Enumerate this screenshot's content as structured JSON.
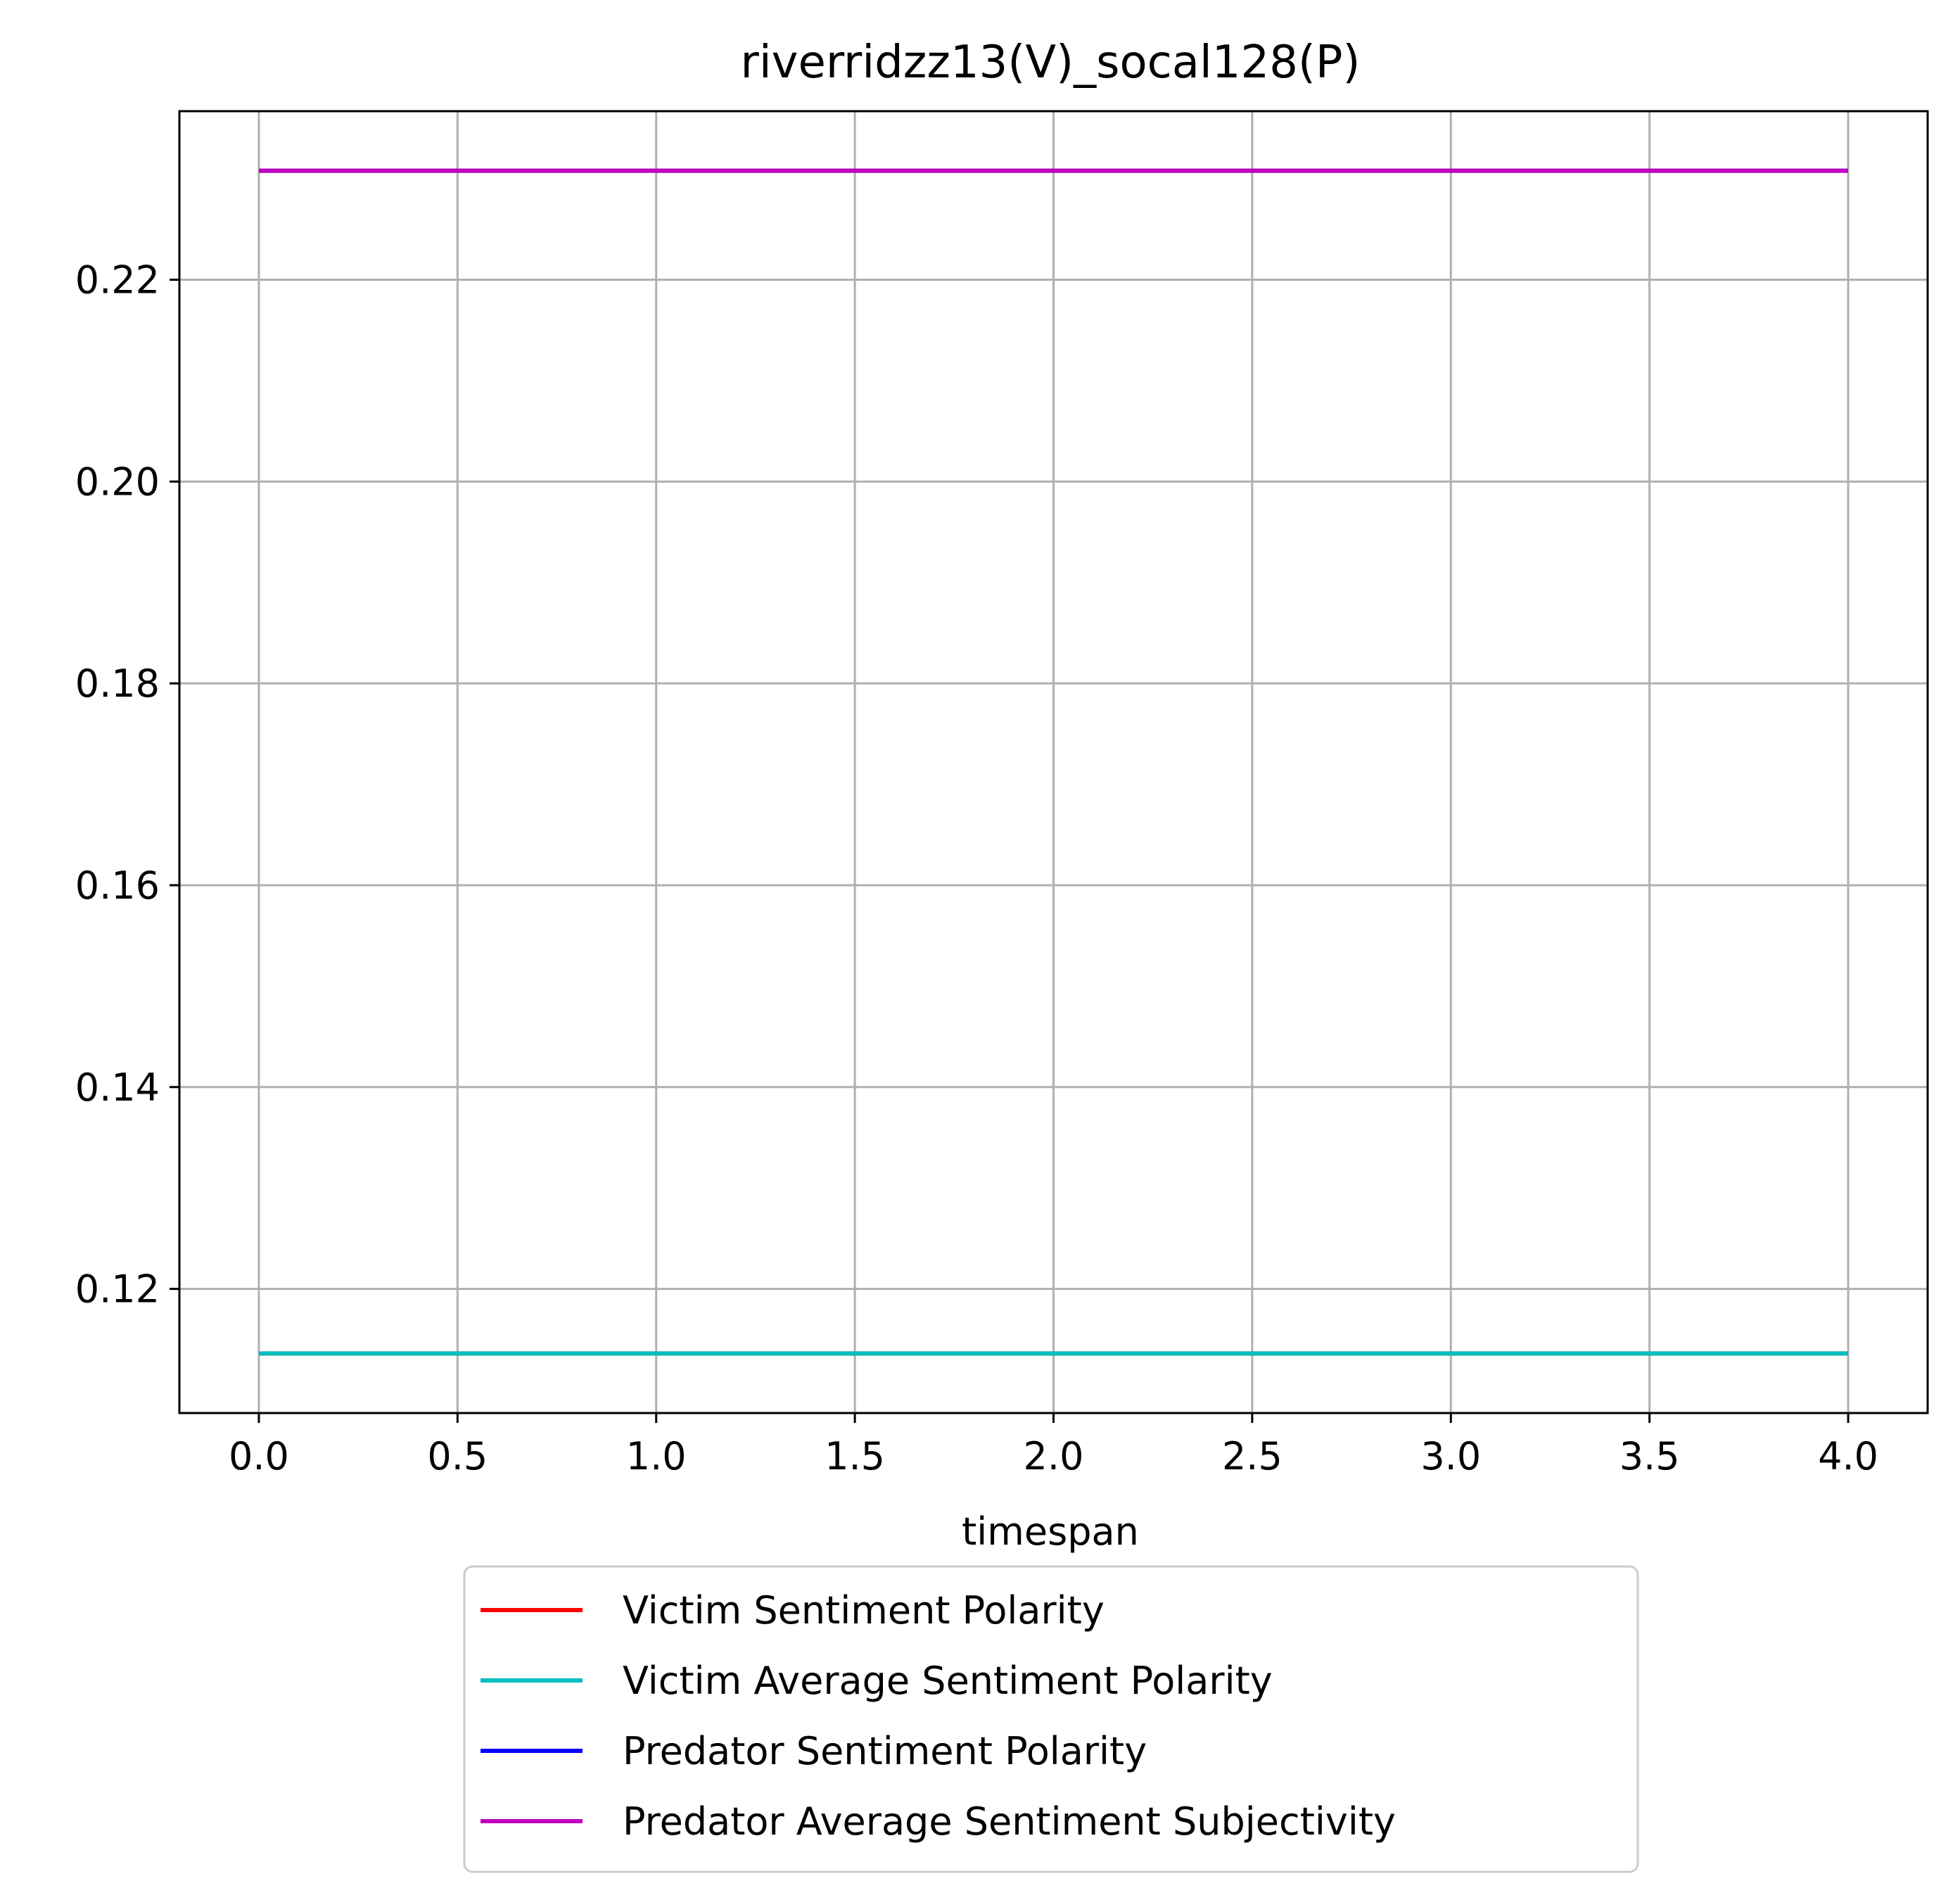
{
  "chart_data": {
    "type": "line",
    "title": "riverridzz13(V)_socal128(P)",
    "xlabel": "timespan",
    "ylabel": "",
    "xlim": [
      -0.2,
      4.2
    ],
    "ylim": [
      0.1077,
      0.2367
    ],
    "x_ticks": [
      "0.0",
      "0.5",
      "1.0",
      "1.5",
      "2.0",
      "2.5",
      "3.0",
      "3.5",
      "4.0"
    ],
    "y_ticks": [
      "0.12",
      "0.14",
      "0.16",
      "0.18",
      "0.20",
      "0.22"
    ],
    "grid": true,
    "legend_position": "below plot, center",
    "x": [
      0,
      1,
      2,
      3,
      4
    ],
    "series": [
      {
        "name": "Victim Sentiment Polarity",
        "color": "#ff0000",
        "values": [
          0.1136,
          0.1136,
          0.1136,
          0.1136,
          0.1136
        ]
      },
      {
        "name": "Victim Average Sentiment Polarity",
        "color": "#00bfbf",
        "values": [
          0.1136,
          0.1136,
          0.1136,
          0.1136,
          0.1136
        ]
      },
      {
        "name": "Predator Sentiment Polarity",
        "color": "#0000ff",
        "values": [
          0.2308,
          0.2308,
          0.2308,
          0.2308,
          0.2308
        ]
      },
      {
        "name": "Predator Average Sentiment Subjectivity",
        "color": "#bf00bf",
        "values": [
          0.2308,
          0.2308,
          0.2308,
          0.2308,
          0.2308
        ]
      }
    ]
  }
}
